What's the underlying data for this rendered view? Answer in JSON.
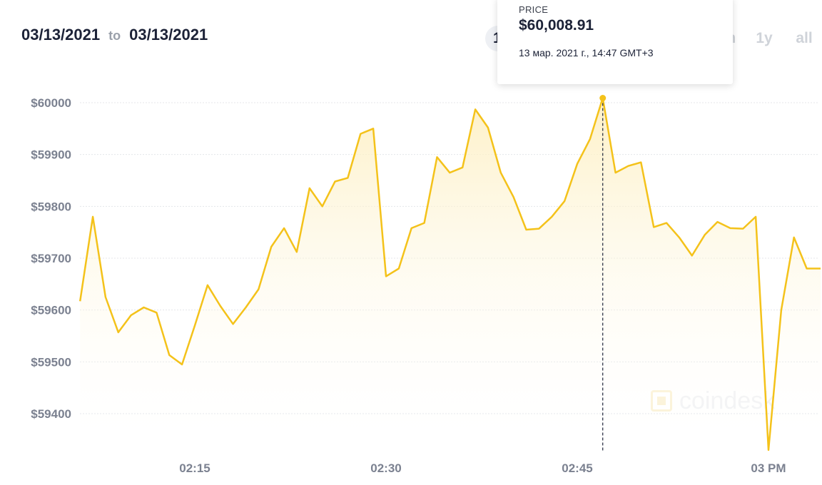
{
  "header": {
    "date_from": "03/13/2021",
    "to_label": "to",
    "date_to": "03/13/2021"
  },
  "range_buttons": [
    {
      "label": "1",
      "active": true
    },
    {
      "label": "m",
      "active": false
    },
    {
      "label": "1y",
      "active": false
    },
    {
      "label": "all",
      "active": false
    }
  ],
  "tooltip": {
    "label": "PRICE",
    "price": "$60,008.91",
    "date": "13 мар. 2021 г., 14:47 GMT+3"
  },
  "watermark": "coindesk",
  "colors": {
    "line": "#f4c21a",
    "area_top": "#fdeebd",
    "grid": "#e4e6ea",
    "axis_text": "#7b8190"
  },
  "chart_data": {
    "type": "area",
    "ylabel": "",
    "xlabel": "",
    "ylim": [
      59335,
      60080
    ],
    "y_ticks": [
      {
        "value": 60000,
        "label": "$60000"
      },
      {
        "value": 59900,
        "label": "$59900"
      },
      {
        "value": 59800,
        "label": "$59800"
      },
      {
        "value": 59700,
        "label": "$59700"
      },
      {
        "value": 59600,
        "label": "$59600"
      },
      {
        "value": 59500,
        "label": "$59500"
      },
      {
        "value": 59400,
        "label": "$59400"
      }
    ],
    "x_range": [
      "02:06",
      "03:06"
    ],
    "x_ticks": [
      {
        "value": "02:15",
        "label": "02:15"
      },
      {
        "value": "02:30",
        "label": "02:30"
      },
      {
        "value": "02:45",
        "label": "02:45"
      },
      {
        "value": "03:00",
        "label": "03 PM"
      }
    ],
    "grid": true,
    "hover_point": {
      "x": "02:47",
      "y": 60008.91
    },
    "series": [
      {
        "x": [
          "02:06",
          "02:07",
          "02:08",
          "02:09",
          "02:10",
          "02:11",
          "02:12",
          "02:13",
          "02:14",
          "02:15",
          "02:16",
          "02:17",
          "02:18",
          "02:19",
          "02:20",
          "02:21",
          "02:22",
          "02:23",
          "02:24",
          "02:25",
          "02:26",
          "02:27",
          "02:28",
          "02:29",
          "02:30",
          "02:31",
          "02:32",
          "02:33",
          "02:34",
          "02:35",
          "02:36",
          "02:37",
          "02:38",
          "02:39",
          "02:40",
          "02:41",
          "02:42",
          "02:43",
          "02:44",
          "02:45",
          "02:46",
          "02:47",
          "02:48",
          "02:49",
          "02:50",
          "02:51",
          "02:52",
          "02:53",
          "02:54",
          "02:55",
          "02:56",
          "02:57",
          "02:58",
          "02:59",
          "03:00",
          "03:01",
          "03:02",
          "03:03",
          "03:04"
        ],
        "values": [
          59617,
          59780,
          59625,
          59557,
          59590,
          59605,
          59595,
          59513,
          59495,
          59570,
          59648,
          59608,
          59573,
          59605,
          59640,
          59722,
          59758,
          59712,
          59835,
          59800,
          59848,
          59855,
          59940,
          59950,
          59665,
          59680,
          59758,
          59768,
          59895,
          59865,
          59875,
          59987,
          59952,
          59865,
          59818,
          59755,
          59757,
          59780,
          59810,
          59882,
          59930,
          60008.91,
          59865,
          59878,
          59885,
          59760,
          59768,
          59740,
          59705,
          59745,
          59770,
          59758,
          59757,
          59780,
          59330,
          59600,
          59740,
          59680,
          59680
        ]
      }
    ]
  }
}
